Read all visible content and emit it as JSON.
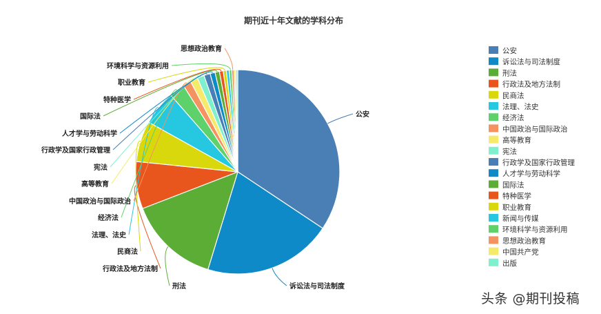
{
  "watermark": "头条 @期刊投稿",
  "chart_data": {
    "type": "pie",
    "title": "期刊近十年文献的学科分布",
    "legend_position": "right",
    "labeled": [
      "公安",
      "诉讼法与司法制度",
      "刑法",
      "行政法及地方法制",
      "民商法",
      "法理、法史",
      "经济法",
      "中国政治与国际政治",
      "高等教育",
      "宪法",
      "行政学及国家行政管理",
      "人才学与劳动科学",
      "国际法",
      "特种医学",
      "职业教育",
      "环境科学与资源利用",
      "思想政治教育"
    ],
    "slices": [
      {
        "name": "公安",
        "value": 34.5,
        "color": "#4a7fb5"
      },
      {
        "name": "诉讼法与司法制度",
        "value": 20.5,
        "color": "#0e8ac8"
      },
      {
        "name": "刑法",
        "value": 14.5,
        "color": "#5cad35"
      },
      {
        "name": "行政法及地方法制",
        "value": 7.5,
        "color": "#e8561d"
      },
      {
        "name": "民商法",
        "value": 6.5,
        "color": "#d8d80c"
      },
      {
        "name": "法理、法史",
        "value": 5.5,
        "color": "#25c8e0"
      },
      {
        "name": "经济法",
        "value": 2.5,
        "color": "#5fd16a"
      },
      {
        "name": "中国政治与国际政治",
        "value": 1.3,
        "color": "#f4935f"
      },
      {
        "name": "高等教育",
        "value": 1.2,
        "color": "#f6ea6a"
      },
      {
        "name": "宪法",
        "value": 1.1,
        "color": "#7ef0cd"
      },
      {
        "name": "行政学及国家行政管理",
        "value": 1.0,
        "color": "#4a7fb5"
      },
      {
        "name": "人才学与劳动科学",
        "value": 0.8,
        "color": "#0e8ac8"
      },
      {
        "name": "国际法",
        "value": 0.7,
        "color": "#5cad35"
      },
      {
        "name": "特种医学",
        "value": 0.6,
        "color": "#e8561d"
      },
      {
        "name": "职业教育",
        "value": 0.5,
        "color": "#d8d80c"
      },
      {
        "name": "新闻与传媒",
        "value": 0.45,
        "color": "#25c8e0"
      },
      {
        "name": "环境科学与资源利用",
        "value": 0.4,
        "color": "#5fd16a"
      },
      {
        "name": "思想政治教育",
        "value": 0.35,
        "color": "#f4935f"
      },
      {
        "name": "中国共产党",
        "value": 0.3,
        "color": "#f6ea6a"
      },
      {
        "name": "出版",
        "value": 0.3,
        "color": "#7ef0cd"
      }
    ]
  }
}
